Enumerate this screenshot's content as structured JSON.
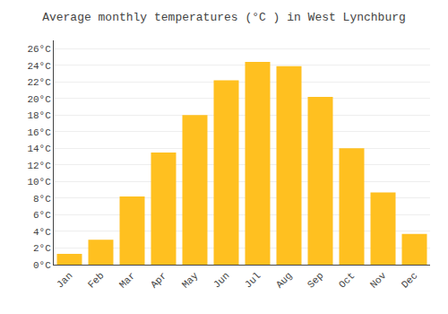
{
  "chart_data": {
    "type": "bar",
    "title": "Average monthly temperatures (°C ) in West Lynchburg",
    "categories": [
      "Jan",
      "Feb",
      "Mar",
      "Apr",
      "May",
      "Jun",
      "Jul",
      "Aug",
      "Sep",
      "Oct",
      "Nov",
      "Dec"
    ],
    "values": [
      1.3,
      3.0,
      8.2,
      13.5,
      18.0,
      22.2,
      24.4,
      23.9,
      20.2,
      14.0,
      8.7,
      3.7
    ],
    "color": "#FFC020",
    "ylim": [
      0,
      27
    ],
    "yticks": [
      {
        "value": 0,
        "label": "0°C"
      },
      {
        "value": 2,
        "label": "2°C"
      },
      {
        "value": 4,
        "label": "4°C"
      },
      {
        "value": 6,
        "label": "6°C"
      },
      {
        "value": 8,
        "label": "8°C"
      },
      {
        "value": 10,
        "label": "10°C"
      },
      {
        "value": 12,
        "label": "12°C"
      },
      {
        "value": 14,
        "label": "14°C"
      },
      {
        "value": 16,
        "label": "16°C"
      },
      {
        "value": 18,
        "label": "18°C"
      },
      {
        "value": 20,
        "label": "20°C"
      },
      {
        "value": 22,
        "label": "22°C"
      },
      {
        "value": 24,
        "label": "24°C"
      },
      {
        "value": 26,
        "label": "26°C"
      }
    ],
    "grid": true
  }
}
